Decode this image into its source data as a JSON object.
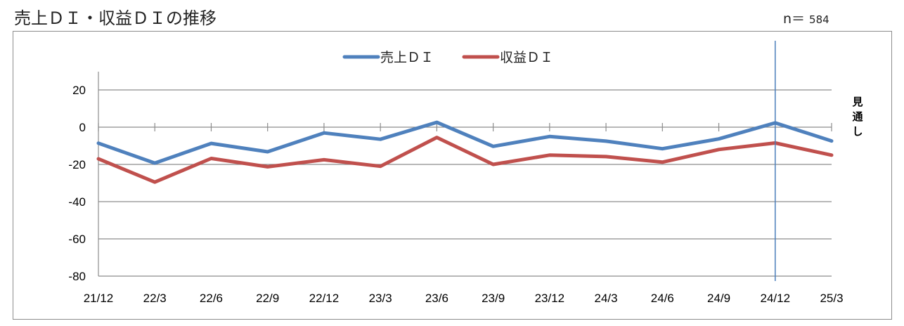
{
  "title": "売上ＤＩ・収益ＤＩの推移",
  "n_label": "n＝",
  "n_value": "584",
  "chart_data": {
    "type": "line",
    "categories": [
      "21/12",
      "22/3",
      "22/6",
      "22/9",
      "22/12",
      "23/3",
      "23/6",
      "23/9",
      "23/12",
      "24/3",
      "24/6",
      "24/9",
      "24/12",
      "25/3"
    ],
    "series": [
      {
        "name": "売上ＤＩ",
        "color": "#4f81bd",
        "values": [
          -8.6,
          -19.3,
          -8.7,
          -13.2,
          -3.1,
          -6.5,
          2.6,
          -10.3,
          -5.0,
          -7.5,
          -11.6,
          -6.3,
          2.3,
          -7.4
        ]
      },
      {
        "name": "収益ＤＩ",
        "color": "#c0504d",
        "values": [
          -17.0,
          -29.5,
          -16.8,
          -21.3,
          -17.5,
          -21.0,
          -5.5,
          -20.0,
          -15.0,
          -15.8,
          -18.8,
          -12.0,
          -8.5,
          -15.0
        ]
      }
    ],
    "ylim": [
      -80,
      30
    ],
    "yticks": [
      20,
      0,
      -20,
      -40,
      -60,
      -80
    ],
    "grid": true,
    "legend": "top",
    "forecast_divider_after": "24/12",
    "forecast_label": [
      "見",
      "通",
      "し"
    ],
    "xlabel": "",
    "ylabel": ""
  }
}
